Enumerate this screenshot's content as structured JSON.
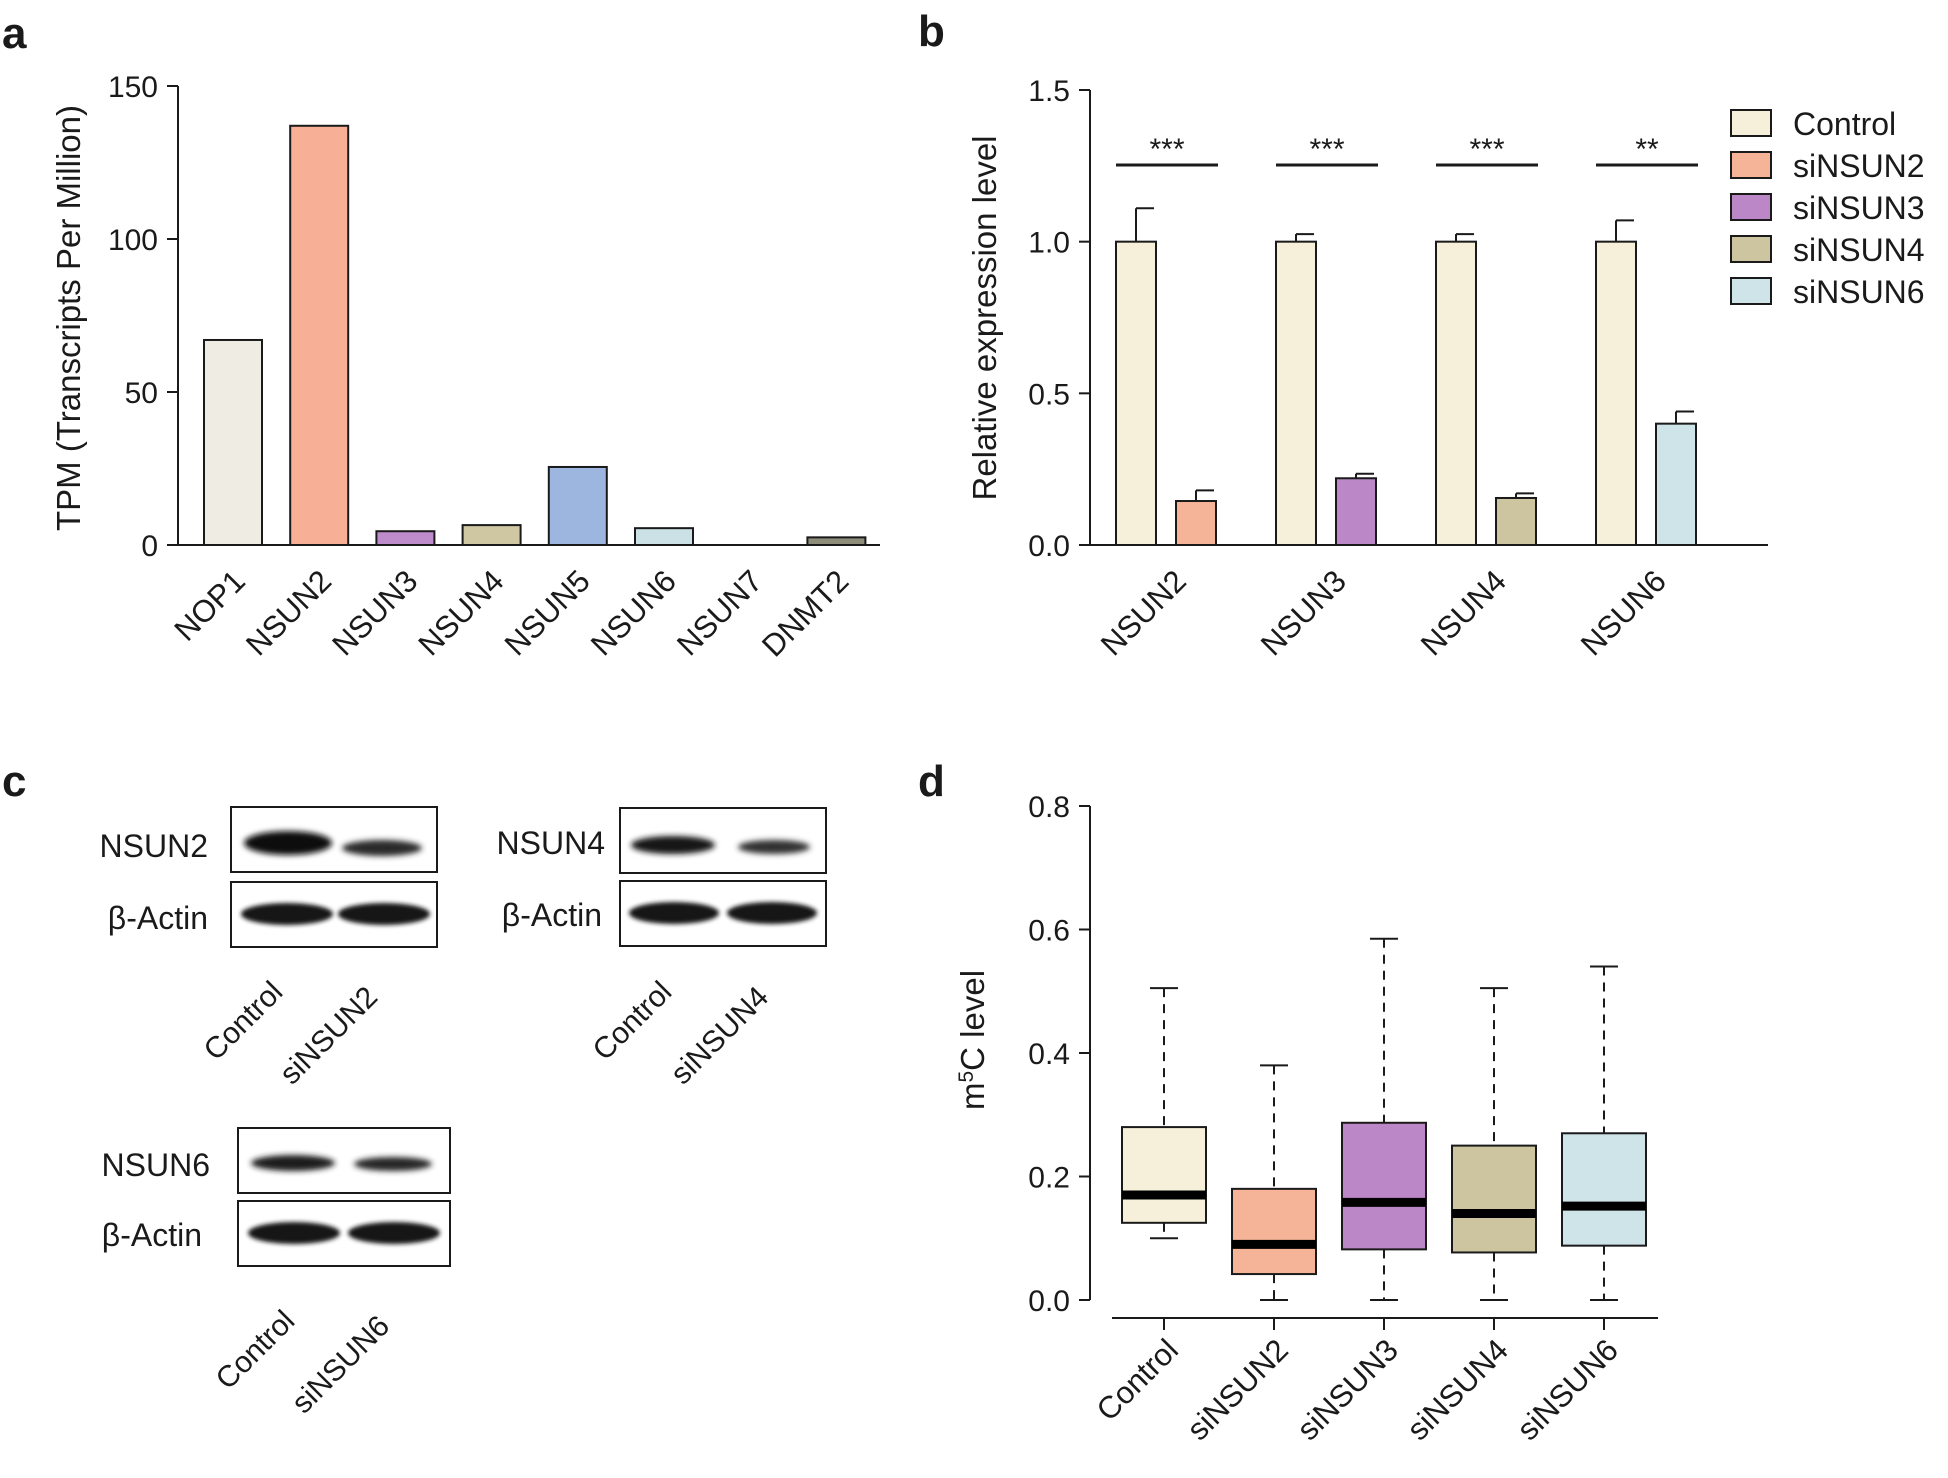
{
  "panels": {
    "a": "a",
    "b": "b",
    "c": "c",
    "d": "d"
  },
  "colors": {
    "NOP1": "#efece4",
    "NSUN2": "#f7b096",
    "NSUN3": "#bf8ccb",
    "NSUN4": "#cfc6a2",
    "NSUN5": "#9db6e0",
    "NSUN6": "#cbe1e6",
    "NSUN7": "#dddddd",
    "DNMT2": "#8e8d7a",
    "Control": "#f6efd9",
    "siNSUN2": "#f5b497",
    "siNSUN3": "#bb87c7",
    "siNSUN4": "#ccc5a0",
    "siNSUN6": "#cfe4e8"
  },
  "chart_data": [
    {
      "id": "a",
      "type": "bar",
      "ylabel": "TPM (Transcripts Per Million)",
      "xlabel": "",
      "ylim": [
        0,
        150
      ],
      "yticks": [
        "0",
        "50",
        "100",
        "150"
      ],
      "categories": [
        "NOP1",
        "NSUN2",
        "NSUN3",
        "NSUN4",
        "NSUN5",
        "NSUN6",
        "NSUN7",
        "DNMT2"
      ],
      "values": [
        67,
        137,
        4.5,
        6.5,
        25.5,
        5.5,
        0,
        2.5
      ]
    },
    {
      "id": "b",
      "type": "bar",
      "ylabel": "Relative  expression level",
      "xlabel": "",
      "ylim": [
        0,
        1.5
      ],
      "yticks": [
        "0.0",
        "0.5",
        "1.0",
        "1.5"
      ],
      "categories": [
        "NSUN2",
        "NSUN3",
        "NSUN4",
        "NSUN6"
      ],
      "series": [
        {
          "name": "Control",
          "values": [
            1.0,
            1.0,
            1.0,
            1.0
          ],
          "errors": [
            0.11,
            0.025,
            0.025,
            0.07
          ]
        },
        {
          "name": "siNSUN",
          "labels": [
            "siNSUN2",
            "siNSUN3",
            "siNSUN4",
            "siNSUN6"
          ],
          "values": [
            0.145,
            0.22,
            0.155,
            0.4
          ],
          "errors": [
            0.035,
            0.015,
            0.015,
            0.04
          ]
        }
      ],
      "significance": [
        "***",
        "***",
        "***",
        "**"
      ],
      "legend": [
        "Control",
        "siNSUN2",
        "siNSUN3",
        "siNSUN4",
        "siNSUN6"
      ],
      "legend_position": "right"
    },
    {
      "id": "d",
      "type": "box",
      "ylabel_prefix": "m",
      "ylabel_sup": "5",
      "ylabel_suffix": "C level",
      "ylim": [
        0,
        0.8
      ],
      "yticks": [
        "0.0",
        "0.2",
        "0.4",
        "0.6",
        "0.8"
      ],
      "categories": [
        "Control",
        "siNSUN2",
        "siNSUN3",
        "siNSUN4",
        "siNSUN6"
      ],
      "boxes": [
        {
          "min": 0.1,
          "q1": 0.125,
          "median": 0.17,
          "q3": 0.28,
          "max": 0.505
        },
        {
          "min": 0.0,
          "q1": 0.042,
          "median": 0.09,
          "q3": 0.18,
          "max": 0.38
        },
        {
          "min": 0.0,
          "q1": 0.082,
          "median": 0.158,
          "q3": 0.287,
          "max": 0.585
        },
        {
          "min": 0.0,
          "q1": 0.077,
          "median": 0.14,
          "q3": 0.25,
          "max": 0.505
        },
        {
          "min": 0.0,
          "q1": 0.088,
          "median": 0.152,
          "q3": 0.27,
          "max": 0.54
        }
      ]
    }
  ],
  "blots": {
    "nsun2": {
      "target": "NSUN2",
      "loading": "β-Actin",
      "lanes": [
        "Control",
        "siNSUN2"
      ]
    },
    "nsun4": {
      "target": "NSUN4",
      "loading": "β-Actin",
      "lanes": [
        "Control",
        "siNSUN4"
      ]
    },
    "nsun6": {
      "target": "NSUN6",
      "loading": "β-Actin",
      "lanes": [
        "Control",
        "siNSUN6"
      ]
    }
  }
}
